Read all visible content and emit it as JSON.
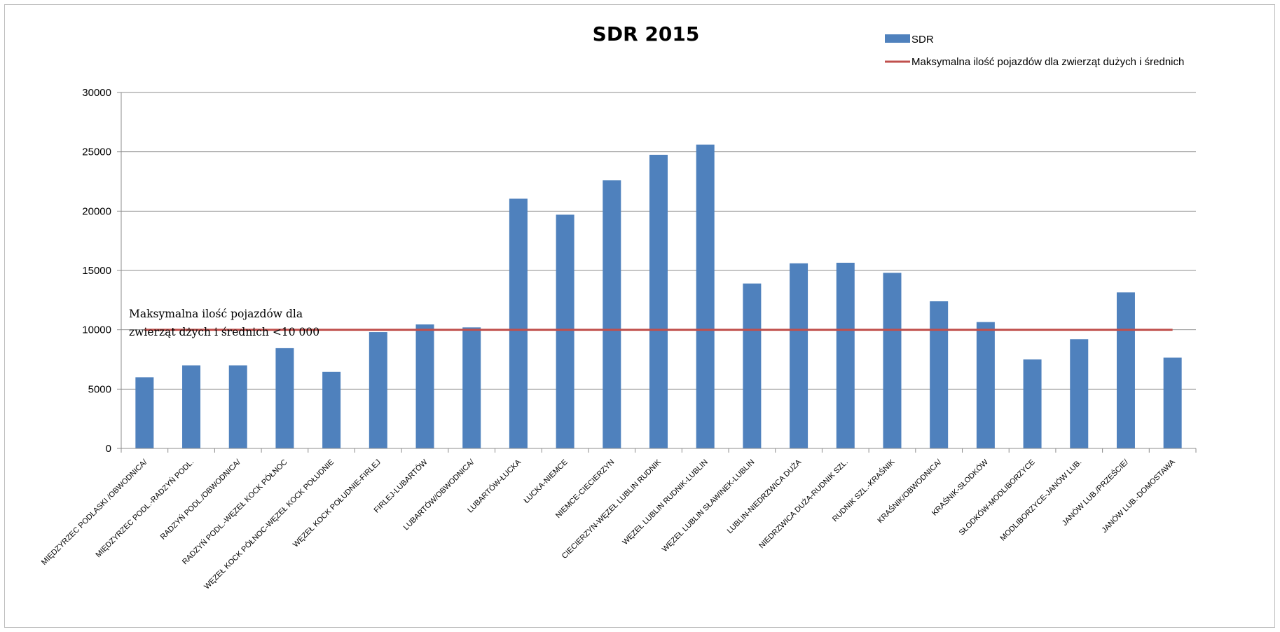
{
  "chart_data": {
    "type": "bar",
    "title": "SDR 2015",
    "xlabel": "",
    "ylabel": "",
    "ylim": [
      0,
      30000
    ],
    "yticks": [
      0,
      5000,
      10000,
      15000,
      20000,
      25000,
      30000
    ],
    "grid": true,
    "legend_position": "top-right",
    "categories": [
      "MIĘDZYRZEC PODLASKI /OBWODNICA/",
      "MIĘDZYRZEC PODL.-RADZYŃ PODL.",
      "RADZYŃ PODL./OBWODNICA/",
      "RADZYŃ PODL.-WĘZEŁ KOCK PÓŁNOC",
      "WĘZEŁ KOCK PÓŁNOC-WĘZEŁ KOCK POŁUDNIE",
      "WĘZEŁ KOCK POŁUDNIE-FIRLEJ",
      "FIRLEJ-LUBARTÓW",
      "LUBARTÓW/OBWODNICA/",
      "LUBARTÓW-ŁUCKA",
      "ŁUCKA-NIEMCE",
      "NIEMCE-CIECIERZYN",
      "CIECIERZYN-WĘZEŁ LUBLIN RUDNIK",
      "WĘZEŁ LUBLIN RUDNIK-LUBLIN",
      "WĘZEŁ LUBLIN SŁAWINEK-LUBLIN",
      "LUBLIN-NIEDRZWICA DUŻA",
      "NIEDRZWICA DUŻA-RUDNIK SZL.",
      "RUDNIK SZL.-KRAŚNIK",
      "KRAŚNIK/OBWODNICA/",
      "KRAŚNIK-SŁODKÓW",
      "SŁODKÓW-MODLIBORZYCE",
      "MODLIBORZYCE-JANÓW LUB.",
      "JANÓW LUB./PRZEŚCIE/",
      "JANÓW LUB.-DOMOSTAWA"
    ],
    "series": [
      {
        "name": "SDR",
        "type": "bar",
        "color": "#4f81bd",
        "values": [
          6000,
          7000,
          7000,
          8450,
          6450,
          9800,
          10450,
          10200,
          21050,
          19700,
          22600,
          24750,
          25600,
          13900,
          15600,
          15650,
          14800,
          12400,
          10650,
          7500,
          9200,
          13150,
          7650
        ]
      },
      {
        "name": "Maksymalna ilość pojazdów dla zwierząt dużych i średnich",
        "type": "line",
        "color": "#c0504d",
        "value": 10000
      }
    ],
    "annotation": {
      "lines": [
        "Maksymalna ilość pojazdów dla",
        "zwierząt dżych i średnich <10 000"
      ]
    }
  }
}
